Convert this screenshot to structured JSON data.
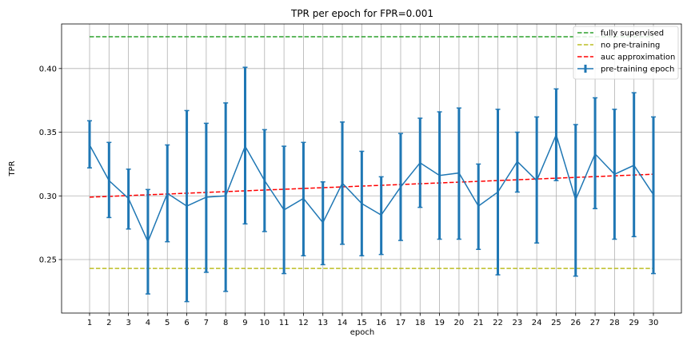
{
  "chart_data": {
    "type": "line",
    "title": "TPR per epoch for FPR=0.001",
    "xlabel": "epoch",
    "ylabel": "TPR",
    "xlim": [
      -0.44,
      31.44
    ],
    "ylim": [
      0.208,
      0.435
    ],
    "x_ticks": [
      1,
      2,
      3,
      4,
      5,
      6,
      7,
      8,
      9,
      10,
      11,
      12,
      13,
      14,
      15,
      16,
      17,
      18,
      19,
      20,
      21,
      22,
      23,
      24,
      25,
      26,
      27,
      28,
      29,
      30
    ],
    "y_ticks": [
      0.25,
      0.3,
      0.35,
      0.4
    ],
    "y_tick_labels": [
      "0.25",
      "0.30",
      "0.35",
      "0.40"
    ],
    "grid": true,
    "legend_position": "top-right",
    "reference_lines": [
      {
        "name": "fully supervised",
        "style": "dashed",
        "color": "#2ca02c",
        "x": [
          1,
          30
        ],
        "y": [
          0.425,
          0.425
        ]
      },
      {
        "name": "no pre-training",
        "style": "dashed",
        "color": "#bcbd22",
        "x": [
          1,
          30
        ],
        "y": [
          0.243,
          0.243
        ]
      },
      {
        "name": "auc approximation",
        "style": "dashed",
        "color": "#ff0000",
        "x": [
          1,
          30
        ],
        "y": [
          0.299,
          0.317
        ]
      }
    ],
    "series": [
      {
        "name": "pre-training epoch",
        "style": "line-errorbar",
        "color": "#1f77b4",
        "x": [
          1,
          2,
          3,
          4,
          5,
          6,
          7,
          8,
          9,
          10,
          11,
          12,
          13,
          14,
          15,
          16,
          17,
          18,
          19,
          20,
          21,
          22,
          23,
          24,
          25,
          26,
          27,
          28,
          29,
          30
        ],
        "values": [
          0.34,
          0.312,
          0.298,
          0.264,
          0.302,
          0.292,
          0.299,
          0.3,
          0.339,
          0.312,
          0.289,
          0.298,
          0.279,
          0.31,
          0.294,
          0.285,
          0.307,
          0.326,
          0.316,
          0.318,
          0.292,
          0.303,
          0.327,
          0.312,
          0.348,
          0.297,
          0.333,
          0.317,
          0.324,
          0.301
        ],
        "error_low": [
          0.322,
          0.283,
          0.274,
          0.223,
          0.264,
          0.217,
          0.24,
          0.225,
          0.278,
          0.272,
          0.239,
          0.253,
          0.246,
          0.262,
          0.253,
          0.254,
          0.265,
          0.291,
          0.266,
          0.266,
          0.258,
          0.238,
          0.303,
          0.263,
          0.312,
          0.237,
          0.29,
          0.266,
          0.268,
          0.239
        ],
        "error_high": [
          0.359,
          0.342,
          0.321,
          0.305,
          0.34,
          0.367,
          0.357,
          0.373,
          0.401,
          0.352,
          0.339,
          0.342,
          0.311,
          0.358,
          0.335,
          0.315,
          0.349,
          0.361,
          0.366,
          0.369,
          0.325,
          0.368,
          0.35,
          0.362,
          0.384,
          0.356,
          0.377,
          0.368,
          0.381,
          0.362
        ]
      }
    ]
  }
}
